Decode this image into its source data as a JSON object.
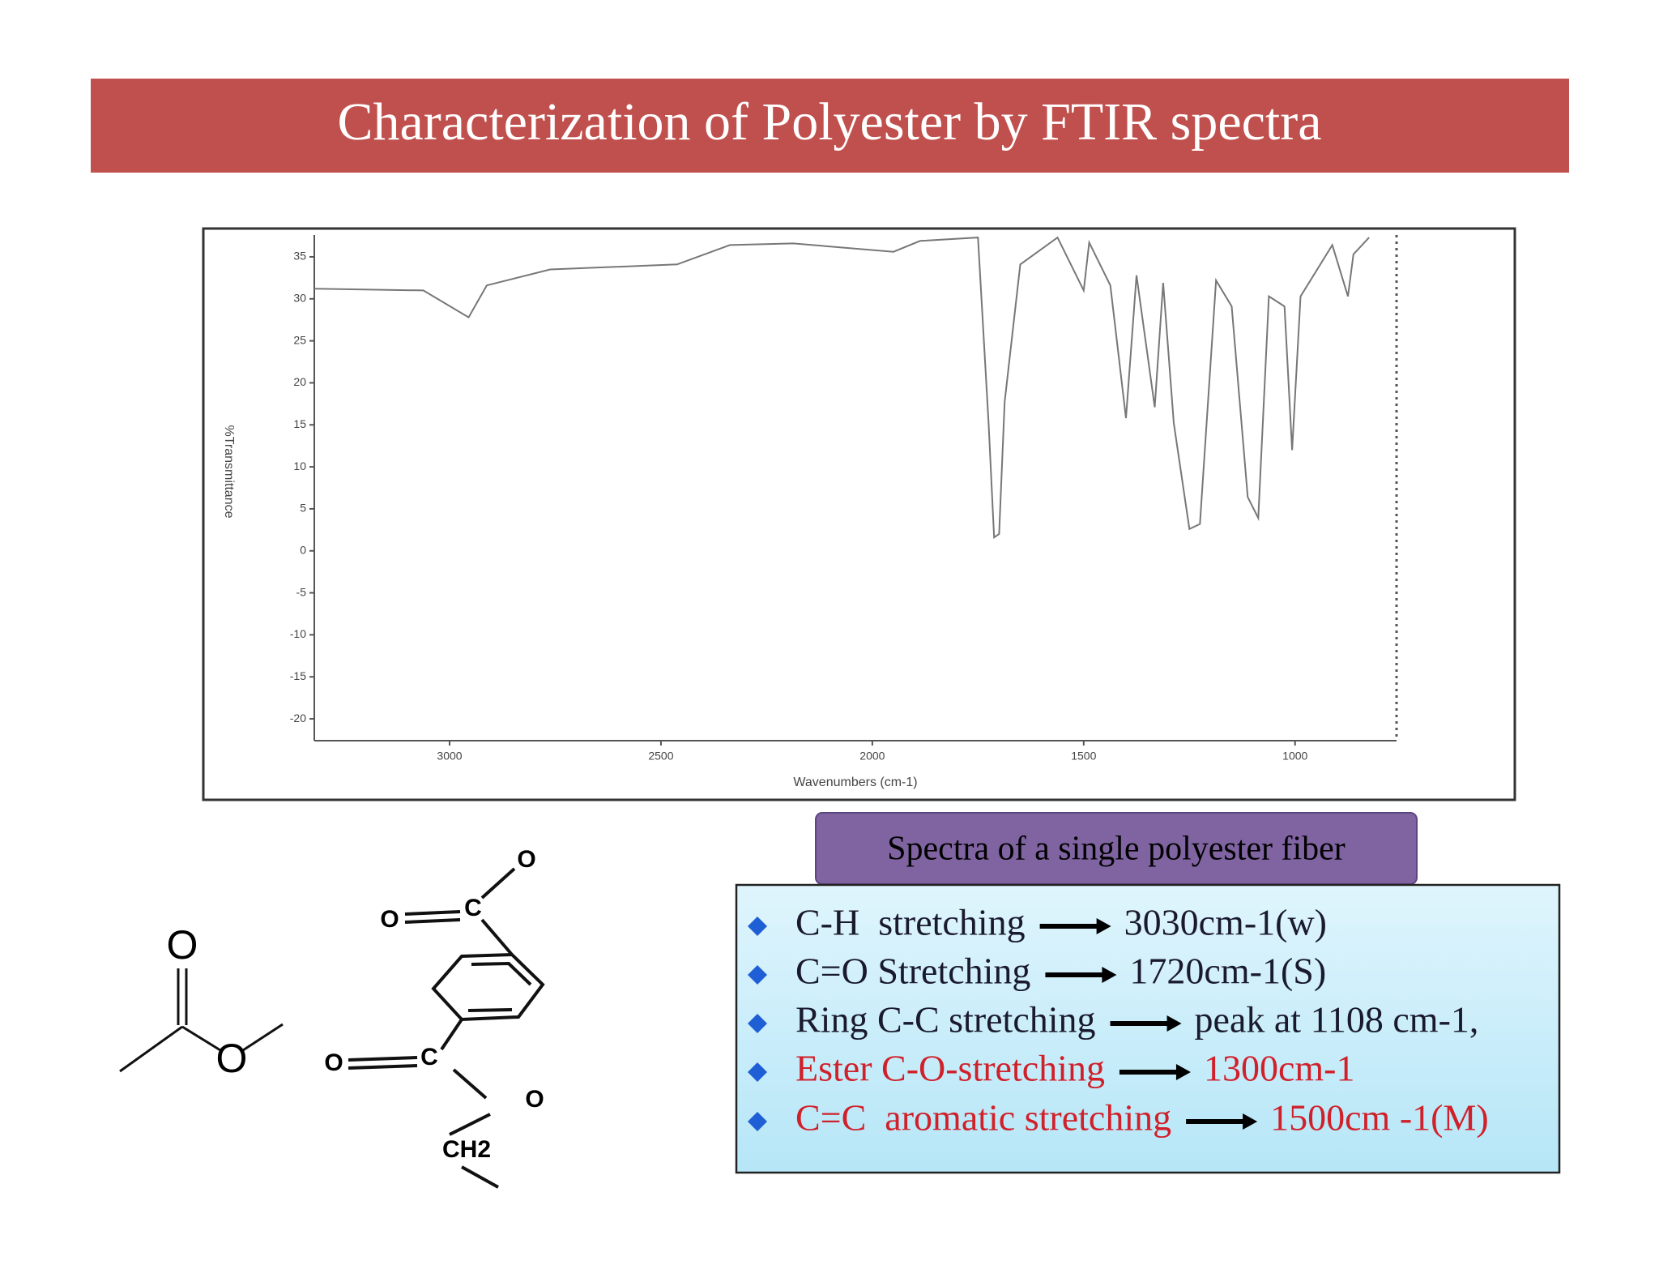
{
  "slide_title": "Characterization of Polyester by FTIR spectra",
  "chart_data": {
    "type": "line",
    "xlabel": "Wavenumbers (cm-1)",
    "ylabel": "%Transmittance",
    "x": [
      3320,
      3062,
      2955,
      2912,
      2762,
      2462,
      2337,
      2187,
      1950,
      1887,
      1750,
      1725,
      1712,
      1700,
      1687,
      1650,
      1562,
      1500,
      1487,
      1437,
      1400,
      1375,
      1332,
      1312,
      1287,
      1250,
      1225,
      1187,
      1150,
      1112,
      1087,
      1062,
      1025,
      1007,
      987,
      912,
      875,
      862,
      825
    ],
    "values": [
      31.2,
      31,
      27.8,
      31.6,
      33.5,
      34.1,
      36.4,
      36.6,
      35.6,
      36.9,
      37.3,
      15.2,
      1.6,
      2,
      17.7,
      34.1,
      37.3,
      31,
      36.7,
      31.6,
      15.8,
      32.8,
      17.1,
      31.9,
      15.2,
      2.6,
      3.2,
      32.2,
      29.1,
      6.4,
      3.9,
      30.3,
      29.1,
      12,
      30.3,
      36.4,
      30.3,
      35.3,
      37.3
    ],
    "color": "#777777",
    "xlim": [
      3320,
      760
    ],
    "ylim": [
      -22.6,
      37.6
    ],
    "xticks": [
      3000,
      2500,
      2000,
      1500,
      1000
    ],
    "yticks": [
      35,
      30,
      25,
      20,
      15,
      10,
      5,
      0,
      -5,
      -10,
      -15,
      -20
    ]
  },
  "caption": "Spectra of a single polyester fiber",
  "bullets": [
    {
      "label": "C-H  stretching",
      "value": "3030cm-1(w)",
      "color": "#1a1a2e"
    },
    {
      "label": "C=O Stretching",
      "value": "1720cm-1(S)",
      "color": "#1a1a2e"
    },
    {
      "label": "Ring C-C stretching",
      "value": "peak at 1108 cm-1,",
      "color": "#1a1a2e"
    },
    {
      "label": "Ester C-O-stretching",
      "value": "1300cm-1",
      "color": "#d0202a"
    },
    {
      "label": "C=C  aromatic stretching",
      "value": "1500cm -1(M)",
      "color": "#d0202a"
    }
  ],
  "structures": {
    "ester": [
      "O",
      "O"
    ],
    "polymer": [
      "O",
      "C",
      "O",
      "C",
      "O",
      "O",
      "CH2"
    ]
  }
}
